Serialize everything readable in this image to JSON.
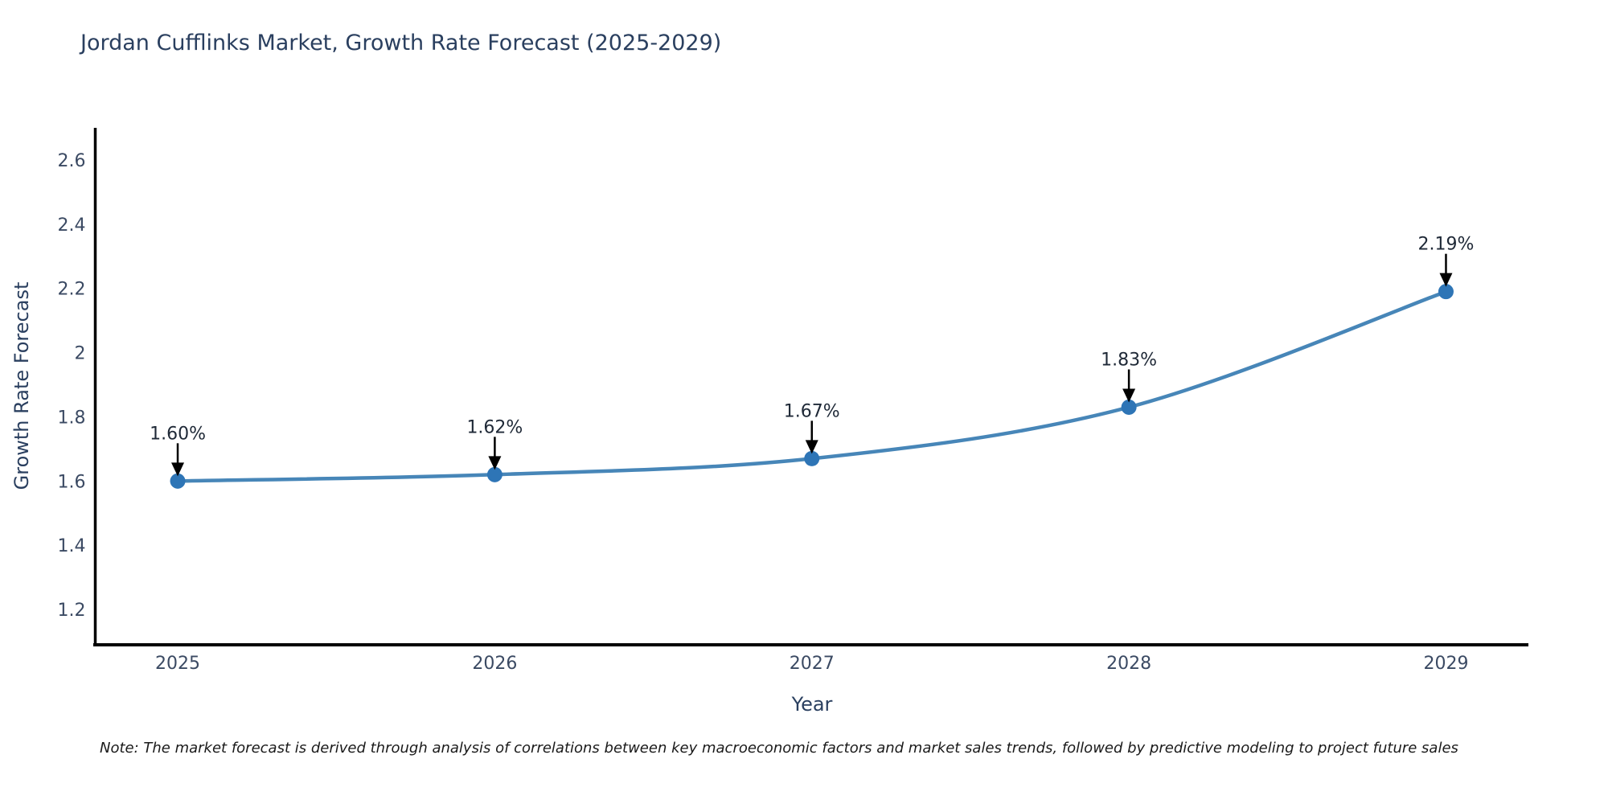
{
  "title": "Jordan Cufflinks Market, Growth Rate Forecast (2025-2029)",
  "note": "Note: The market forecast is derived through analysis of correlations between key macroeconomic factors and market sales trends, followed by predictive modeling to project future sales",
  "chart_data": {
    "type": "line",
    "title": "Jordan Cufflinks Market, Growth Rate Forecast (2025-2029)",
    "x": [
      2025,
      2026,
      2027,
      2028,
      2029
    ],
    "series": [
      {
        "name": "Growth Rate Forecast",
        "values": [
          1.6,
          1.62,
          1.67,
          1.83,
          2.19
        ],
        "point_labels": [
          "1.60%",
          "1.62%",
          "1.67%",
          "1.83%",
          "2.19%"
        ]
      }
    ],
    "xlabel": "Year",
    "ylabel": "Growth Rate Forecast",
    "xlim": [
      2024.74,
      2029.26
    ],
    "ylim": [
      1.09,
      2.7
    ],
    "xticks": [
      "2025",
      "2026",
      "2027",
      "2028",
      "2029"
    ],
    "ytick_values": [
      1.2,
      1.4,
      1.6,
      1.8,
      2.0,
      2.2,
      2.4,
      2.6
    ],
    "ytick_labels": [
      "1.2",
      "1.4",
      "1.6",
      "1.8",
      "2",
      "2.2",
      "2.4",
      "2.6"
    ],
    "grid": false,
    "legend": "none",
    "colors": {
      "line": "#4786b8",
      "marker": "#2e75b6",
      "axis": "#000000",
      "tick_text": "#3b4a63",
      "title_text": "#2a3f5f",
      "annotation_text": "#1f2937",
      "annotation_arrow": "#000000"
    }
  }
}
